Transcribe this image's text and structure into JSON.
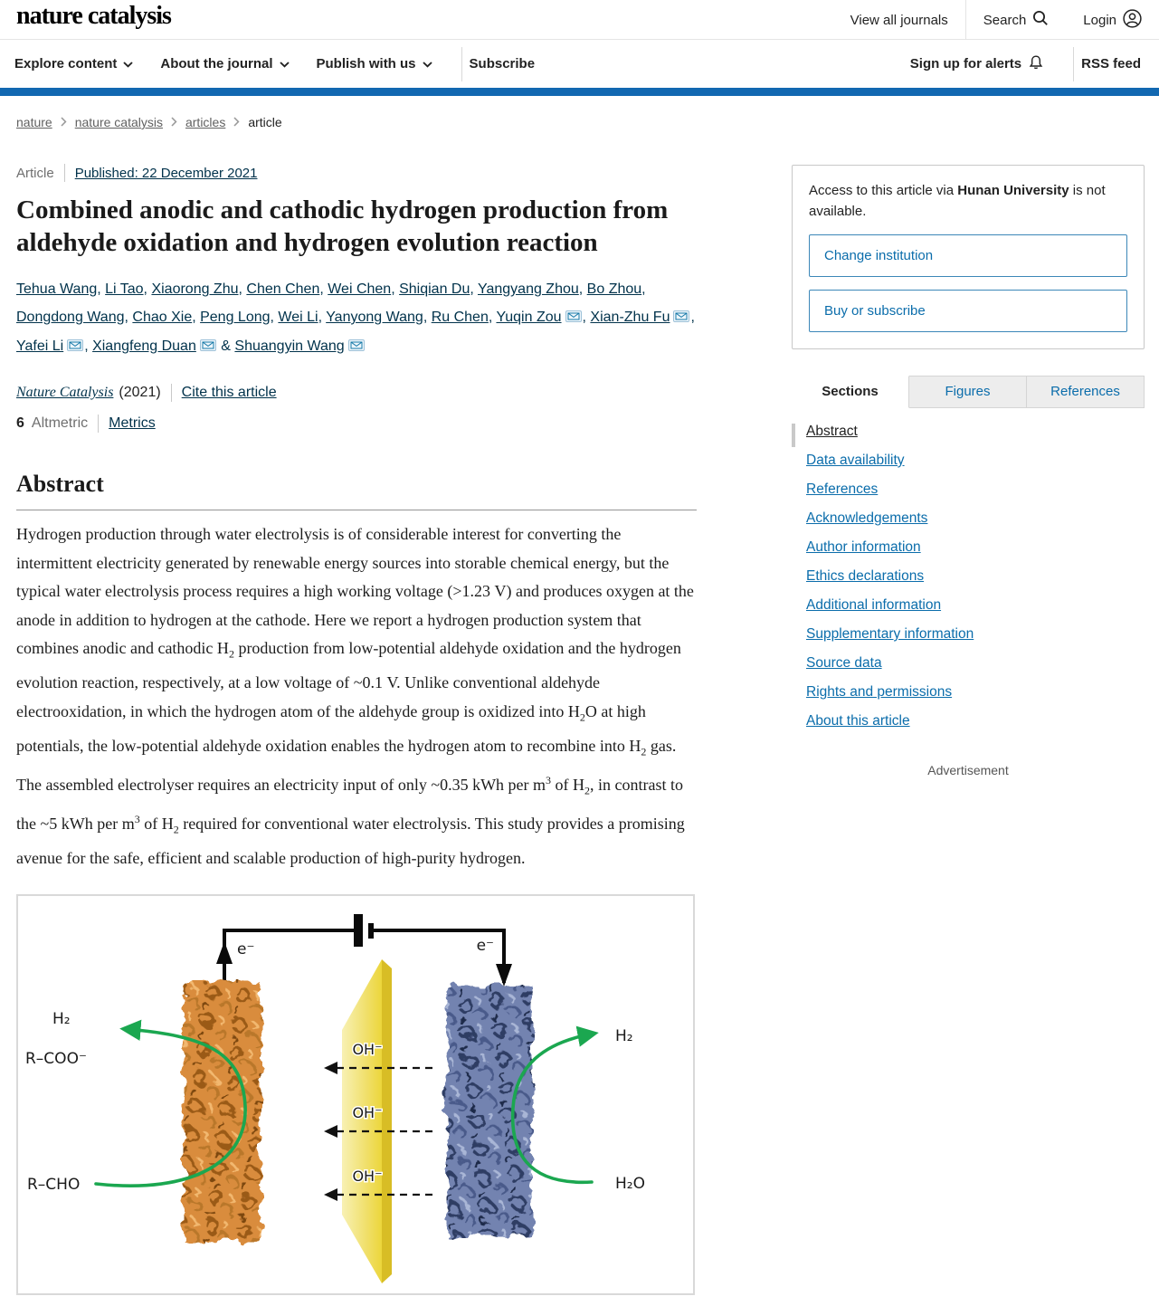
{
  "header": {
    "logo": "nature catalysis",
    "view_all_journals": "View all journals",
    "search": "Search",
    "login": "Login",
    "nav": {
      "explore": "Explore content",
      "about": "About the journal",
      "publish": "Publish with us",
      "subscribe": "Subscribe",
      "alerts": "Sign up for alerts",
      "rss": "RSS feed"
    }
  },
  "breadcrumb": {
    "items": [
      "nature",
      "nature catalysis",
      "articles",
      "article"
    ]
  },
  "article": {
    "type_label": "Article",
    "published_label": "Published: 22 December 2021",
    "title": "Combined anodic and cathodic hydrogen production from aldehyde oxidation and hydrogen evolution reaction",
    "author_separator": ", ",
    "author_amp": " & ",
    "authors": [
      {
        "name": "Tehua Wang"
      },
      {
        "name": "Li Tao"
      },
      {
        "name": "Xiaorong Zhu"
      },
      {
        "name": "Chen Chen"
      },
      {
        "name": "Wei Chen"
      },
      {
        "name": "Shiqian Du"
      },
      {
        "name": "Yangyang Zhou"
      },
      {
        "name": "Bo Zhou"
      },
      {
        "name": "Dongdong Wang"
      },
      {
        "name": "Chao Xie"
      },
      {
        "name": "Peng Long"
      },
      {
        "name": "Wei Li"
      },
      {
        "name": "Yanyong Wang"
      },
      {
        "name": "Ru Chen"
      },
      {
        "name": "Yuqin Zou",
        "email": true
      },
      {
        "name": "Xian-Zhu Fu",
        "email": true
      },
      {
        "name": "Yafei Li",
        "email": true
      },
      {
        "name": "Xiangfeng Duan",
        "email": true
      },
      {
        "name": "Shuangyin Wang",
        "email": true
      }
    ],
    "journal_name": "Nature Catalysis",
    "journal_year": "(2021)",
    "cite_label": "Cite this article",
    "altmetric_count": "6",
    "altmetric_label": "Altmetric",
    "metrics_label": "Metrics",
    "abstract_heading": "Abstract",
    "abstract_html": "Hydrogen production through water electrolysis is of considerable interest for converting the intermittent electricity generated by renewable energy sources into storable chemical energy, but the typical water electrolysis process requires a high working voltage (&gt;1.23&nbsp;V) and produces oxygen at the anode in addition to hydrogen at the cathode. Here we report a hydrogen production system that combines anodic and cathodic H<sub>2</sub> production from low-potential aldehyde oxidation and the hydrogen evolution reaction, respectively, at a low voltage of ~0.1&nbsp;V. Unlike conventional aldehyde electrooxidation, in which the hydrogen atom of the aldehyde group is oxidized into H<sub>2</sub>O at high potentials, the low-potential aldehyde oxidation enables the hydrogen atom to recombine into H<sub>2</sub> gas. The assembled electrolyser requires an electricity input of only ~0.35&nbsp;kWh per m<sup>3</sup> of H<sub>2</sub>, in contrast to the ~5 kWh per m<sup>3</sup> of H<sub>2</sub> required for conventional water electrolysis. This study provides a promising avenue for the safe, efficient and scalable production of high-purity hydrogen."
  },
  "sidebar": {
    "access_html": "Access to this article via <b>Hunan University</b> is not available.",
    "buttons": [
      {
        "label": "Change institution"
      },
      {
        "label": "Buy or subscribe"
      }
    ],
    "tabs": [
      {
        "label": "Sections"
      },
      {
        "label": "Figures"
      },
      {
        "label": "References"
      }
    ],
    "sections": [
      "Abstract",
      "Data availability",
      "References",
      "Acknowledgements",
      "Author information",
      "Ethics declarations",
      "Additional information",
      "Supplementary information",
      "Source data",
      "Rights and permissions",
      "About this article"
    ],
    "advertisement_label": "Advertisement"
  },
  "figure": {
    "labels": {
      "electron_left": "e⁻",
      "electron_right": "e⁻",
      "h2_left": "H₂",
      "rcoo": "R–COO⁻",
      "rcho": "R–CHO",
      "h2_right": "H₂",
      "h2o": "H₂O",
      "oh1": "OH⁻",
      "oh2": "OH⁻",
      "oh3": "OH⁻"
    },
    "colors": {
      "anode_orange": "#d98c3c",
      "cathode_blue": "#7383b0",
      "membrane_yellow": "#ecd63b",
      "reaction_arrow_green": "#1ba750",
      "accent_bar_blue": "#1268b1"
    }
  }
}
